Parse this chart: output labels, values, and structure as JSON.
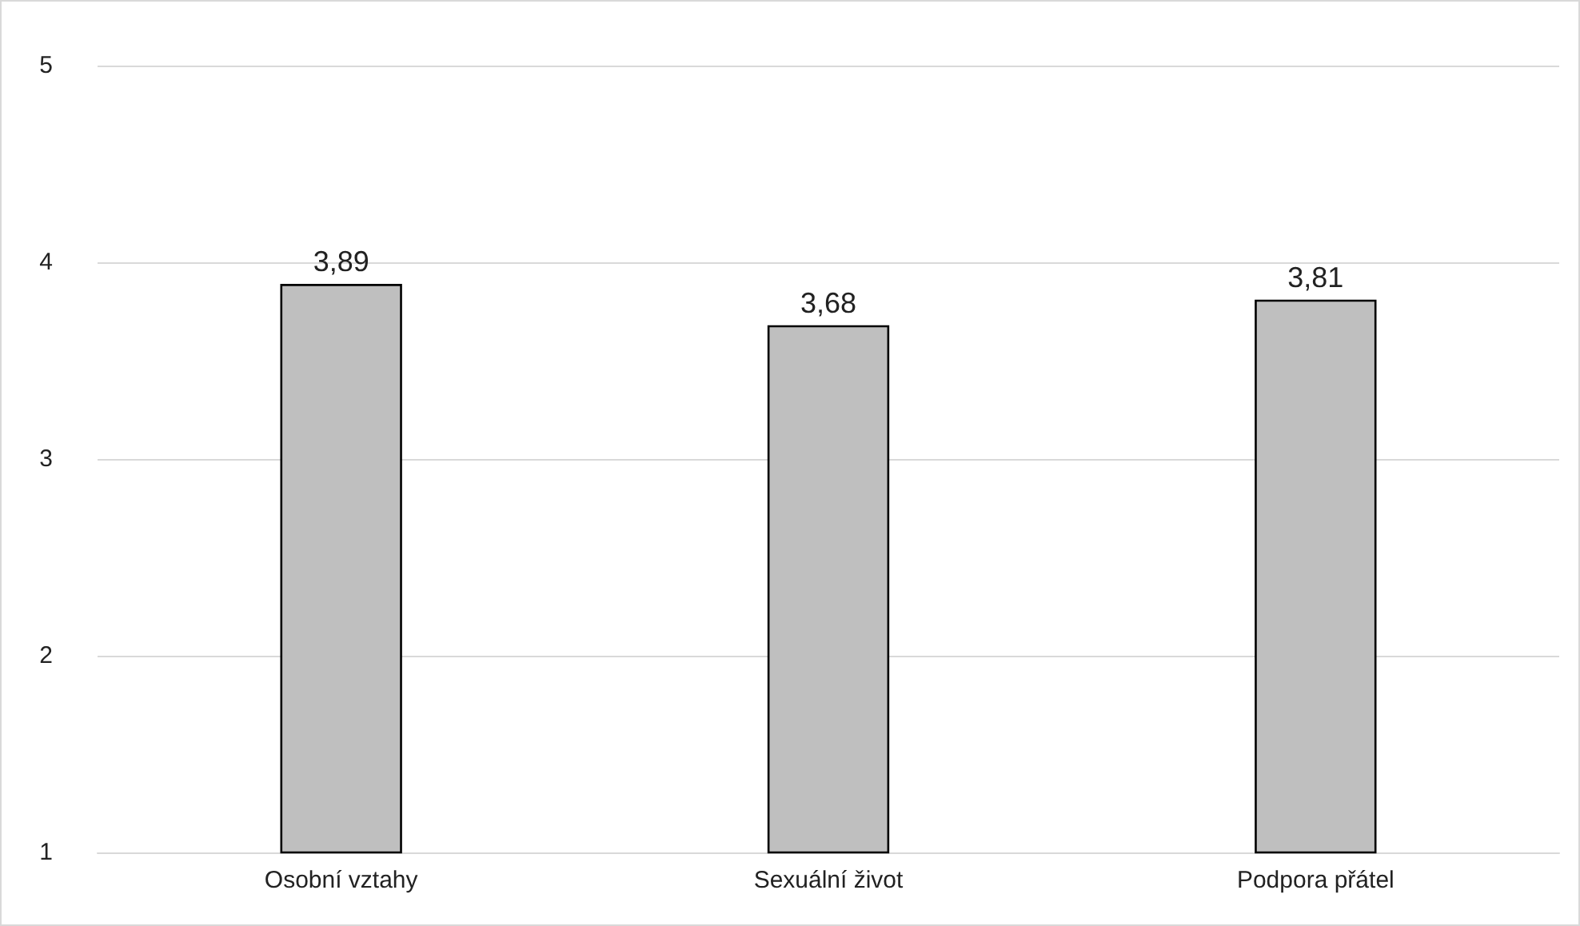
{
  "chart_data": {
    "type": "bar",
    "categories": [
      "Osobní vztahy",
      "Sexuální život",
      "Podpora přátel"
    ],
    "values": [
      3.89,
      3.68,
      3.81
    ],
    "value_labels": [
      "3,89",
      "3,68",
      "3,81"
    ],
    "color": "#bfbfbf",
    "ylim": [
      1,
      5
    ],
    "yticks": [
      1,
      2,
      3,
      4,
      5
    ],
    "grid": "y"
  }
}
